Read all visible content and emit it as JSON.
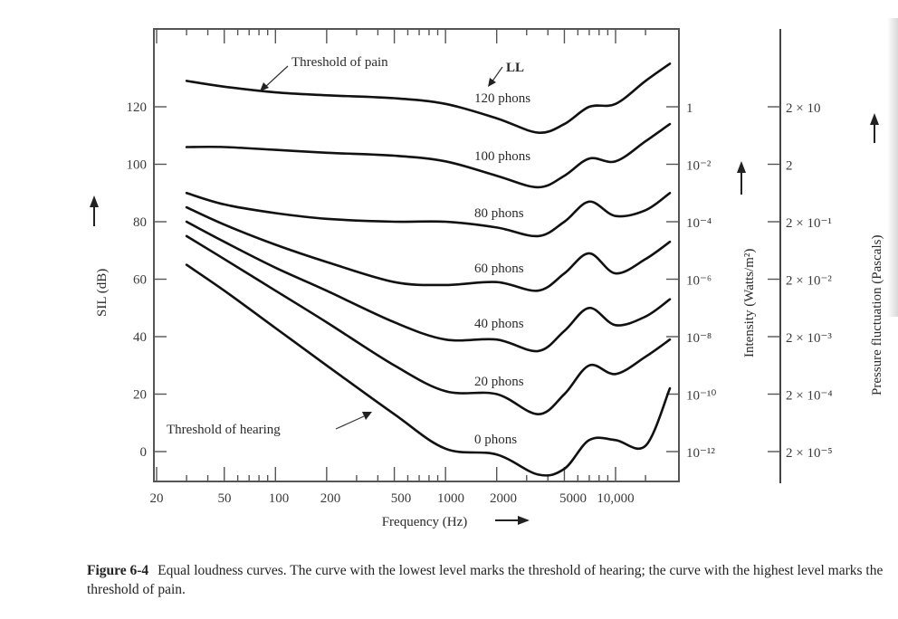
{
  "chart_data": {
    "type": "line",
    "title": "Equal loudness curves",
    "xlabel": "Frequency (Hz)",
    "ylabel": "SIL (dB)",
    "y2label": "Intensity (Watts/m²)",
    "y3label": "Pressure fluctuation (Pascals)",
    "xscale": "log",
    "xlim": [
      20,
      20000
    ],
    "ylim": [
      -10,
      140
    ],
    "grid": false,
    "x_ticks": [
      "20",
      "50",
      "100",
      "200",
      "500",
      "1000",
      "2000",
      "5000",
      "10,000"
    ],
    "y_ticks": [
      "0",
      "20",
      "40",
      "60",
      "80",
      "100",
      "120"
    ],
    "y2_ticks": [
      "10⁻¹²",
      "10⁻¹⁰",
      "10⁻⁸",
      "10⁻⁶",
      "10⁻⁴",
      "10⁻²",
      "1"
    ],
    "y3_ticks": [
      "2 × 10⁻⁵",
      "2 × 10⁻⁴",
      "2 × 10⁻³",
      "2 × 10⁻²",
      "2 × 10⁻¹",
      "2",
      "2 × 10"
    ],
    "x": [
      30,
      50,
      100,
      200,
      500,
      1000,
      2000,
      3500,
      5000,
      7000,
      10000,
      15000
    ],
    "series": [
      {
        "name": "120 phons",
        "values": [
          129,
          127,
          125,
          124,
          123,
          121,
          116,
          111,
          114,
          120,
          121,
          129
        ]
      },
      {
        "name": "100 phons",
        "values": [
          106,
          106,
          105,
          104,
          103,
          101,
          96,
          92,
          96,
          102,
          101,
          108
        ]
      },
      {
        "name": "80 phons",
        "values": [
          90,
          86,
          83,
          81,
          80,
          80,
          78,
          75,
          80,
          87,
          82,
          84
        ]
      },
      {
        "name": "60 phons",
        "values": [
          85,
          79,
          72,
          66,
          59,
          58,
          59,
          56,
          62,
          69,
          62,
          67
        ]
      },
      {
        "name": "40 phons",
        "values": [
          80,
          73,
          64,
          56,
          45,
          39,
          39,
          35,
          42,
          50,
          44,
          47
        ]
      },
      {
        "name": "20 phons",
        "values": [
          75,
          67,
          56,
          45,
          30,
          21,
          20,
          13,
          20,
          30,
          27,
          33
        ]
      },
      {
        "name": "0 phons",
        "values": [
          65,
          56,
          43,
          30,
          13,
          1,
          -1,
          -8,
          -6,
          4,
          4,
          2
        ]
      }
    ],
    "annotations": [
      "Threshold of pain",
      "LL",
      "Threshold of hearing"
    ]
  },
  "labels": {
    "threshold_pain": "Threshold of pain",
    "threshold_hearing": "Threshold of hearing",
    "ll": "LL",
    "phons": [
      "120 phons",
      "100 phons",
      "80 phons",
      "60 phons",
      "40 phons",
      "20 phons",
      "0 phons"
    ],
    "xlabel": "Frequency (Hz)",
    "ylabel": "SIL (dB)",
    "y2label": "Intensity (Watts/m²)",
    "y3label": "Pressure fluctuation (Pascals)"
  },
  "caption": {
    "figure": "Figure 6-4",
    "text": "Equal loudness curves. The curve with the lowest level marks the threshold of hearing; the curve with the highest level marks the threshold of pain."
  }
}
